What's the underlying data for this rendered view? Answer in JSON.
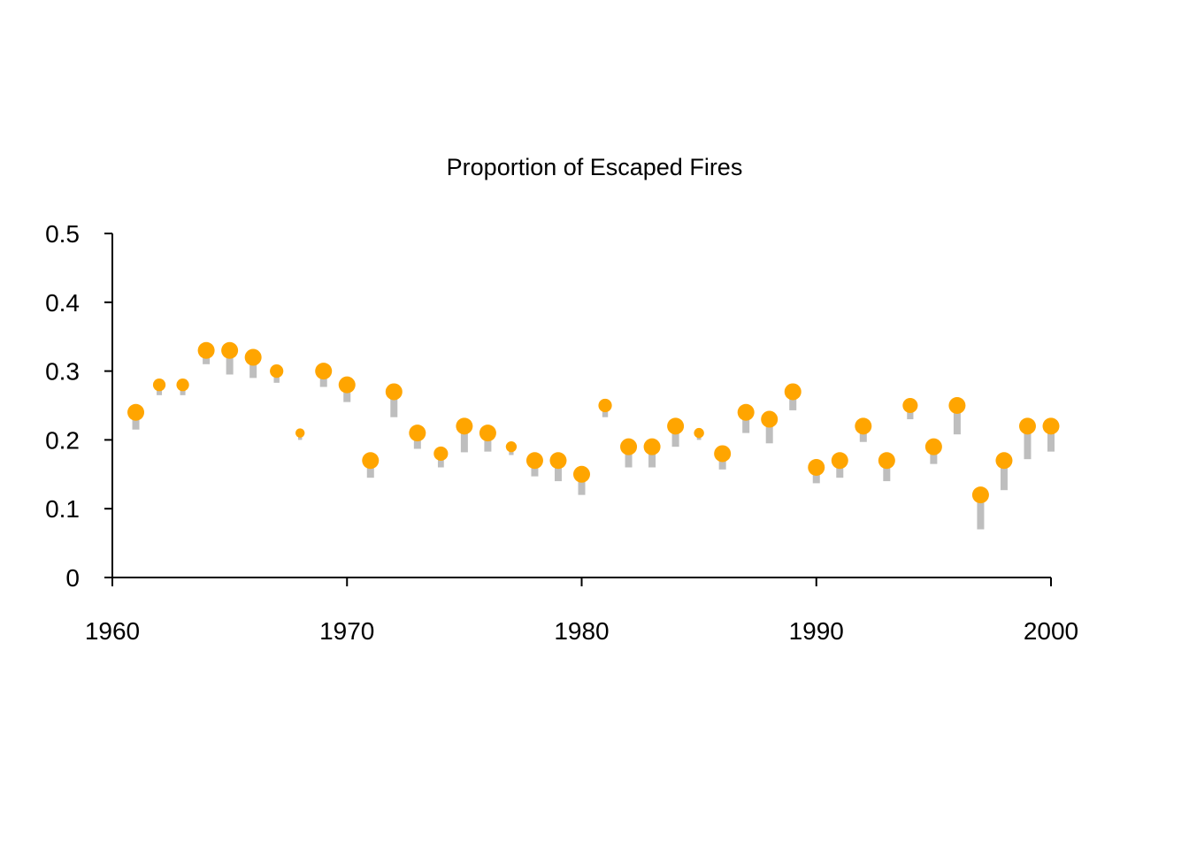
{
  "colors": {
    "point": "#FFA500",
    "stem": "#BEBEBE",
    "axis": "#000000",
    "background": "#FFFFFF"
  },
  "chart_data": {
    "type": "scatter",
    "title": "Proportion of Escaped Fires",
    "xlabel": "",
    "ylabel": "",
    "xlim": [
      1960,
      2000
    ],
    "ylim": [
      0,
      0.5
    ],
    "x_ticks": [
      1960,
      1970,
      1980,
      1990,
      2000
    ],
    "x_tick_labels": [
      "1960",
      "1970",
      "1980",
      "1990",
      "2000"
    ],
    "y_ticks": [
      0,
      0.1,
      0.2,
      0.3,
      0.4,
      0.5
    ],
    "y_tick_labels": [
      "0",
      "0.1",
      "0.2",
      "0.3",
      "0.4",
      "0.5"
    ],
    "grid": false,
    "legend": "none",
    "series": [
      {
        "x": [
          1961,
          1962,
          1963,
          1964,
          1965,
          1966,
          1967,
          1968,
          1969,
          1970,
          1971,
          1972,
          1973,
          1974,
          1975,
          1976,
          1977,
          1978,
          1979,
          1980,
          1981,
          1982,
          1983,
          1984,
          1985,
          1986,
          1987,
          1988,
          1989,
          1990,
          1991,
          1992,
          1993,
          1994,
          1995,
          1996,
          1997,
          1998,
          1999,
          2000
        ],
        "y": [
          0.24,
          0.28,
          0.28,
          0.33,
          0.33,
          0.32,
          0.3,
          0.21,
          0.3,
          0.28,
          0.17,
          0.27,
          0.21,
          0.18,
          0.22,
          0.21,
          0.19,
          0.17,
          0.17,
          0.15,
          0.25,
          0.19,
          0.19,
          0.22,
          0.21,
          0.18,
          0.24,
          0.23,
          0.27,
          0.16,
          0.17,
          0.22,
          0.17,
          0.25,
          0.19,
          0.25,
          0.12,
          0.17,
          0.22,
          0.22
        ],
        "stem_lower": [
          0.215,
          0.265,
          0.265,
          0.31,
          0.295,
          0.29,
          0.283,
          0.2,
          0.277,
          0.255,
          0.145,
          0.233,
          0.187,
          0.16,
          0.182,
          0.183,
          0.178,
          0.147,
          0.14,
          0.12,
          0.233,
          0.16,
          0.16,
          0.19,
          0.2,
          0.157,
          0.21,
          0.195,
          0.243,
          0.137,
          0.145,
          0.197,
          0.14,
          0.23,
          0.165,
          0.208,
          0.07,
          0.127,
          0.172,
          0.183
        ],
        "point_size": [
          1.0,
          0.75,
          0.75,
          1.0,
          1.0,
          1.0,
          0.8,
          0.55,
          1.0,
          1.0,
          1.0,
          1.0,
          1.0,
          0.85,
          1.0,
          1.0,
          0.65,
          1.0,
          1.0,
          1.0,
          0.8,
          1.0,
          1.0,
          1.0,
          0.6,
          1.0,
          1.0,
          1.0,
          1.0,
          1.0,
          1.0,
          1.0,
          1.0,
          0.9,
          1.0,
          1.0,
          1.0,
          1.0,
          1.0,
          1.0
        ]
      }
    ]
  }
}
